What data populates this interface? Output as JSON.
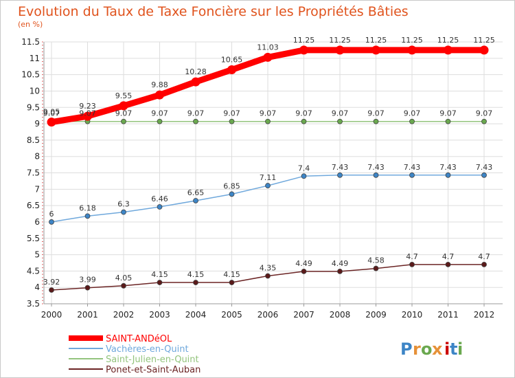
{
  "chart_data": {
    "type": "line",
    "title": "Evolution du Taux de Taxe Foncière sur les Propriétés Bâties",
    "subtitle": "(en %)",
    "x": [
      "2000",
      "2001",
      "2002",
      "2003",
      "2004",
      "2005",
      "2006",
      "2007",
      "2008",
      "2009",
      "2010",
      "2011",
      "2012"
    ],
    "ylim": [
      3.5,
      11.5
    ],
    "yticks": [
      3.5,
      4,
      4.5,
      5,
      5.5,
      6,
      6.5,
      7,
      7.5,
      8,
      8.5,
      9,
      9.5,
      10,
      10.5,
      11,
      11.5
    ],
    "ytick_labels": [
      "3.5",
      "4",
      "4.5",
      "5",
      "5.5",
      "6",
      "6.5",
      "7",
      "7.5",
      "8",
      "8.5",
      "9",
      "9.5",
      "10",
      "10.5",
      "11",
      "11.5"
    ],
    "grid": true,
    "legend": "bottom-left",
    "series": [
      {
        "name": "SAINT-ANDéOL",
        "color": "#ff0000",
        "marker": "#ff0000",
        "thick": true,
        "values": [
          9.05,
          9.23,
          9.55,
          9.88,
          10.28,
          10.65,
          11.03,
          11.25,
          11.25,
          11.25,
          11.25,
          11.25,
          11.25
        ],
        "labels": [
          "9.05",
          "9.23",
          "9.55",
          "9.88",
          "10.28",
          "10.65",
          "11.03",
          "11.25",
          "11.25",
          "11.25",
          "11.25",
          "11.25",
          "11.25"
        ]
      },
      {
        "name": "Vachères-en-Quint",
        "color": "#6fa8dc",
        "marker": "#3d85c6",
        "thick": false,
        "values": [
          6,
          6.18,
          6.3,
          6.46,
          6.65,
          6.85,
          7.11,
          7.4,
          7.43,
          7.43,
          7.43,
          7.43,
          7.43
        ],
        "labels": [
          "6",
          "6.18",
          "6.3",
          "6.46",
          "6.65",
          "6.85",
          "7.11",
          "7.4",
          "7.43",
          "7.43",
          "7.43",
          "7.43",
          "7.43"
        ]
      },
      {
        "name": "Saint-Julien-en-Quint",
        "color": "#93c47d",
        "marker": "#6aa84f",
        "thick": false,
        "values": [
          9.07,
          9.07,
          9.07,
          9.07,
          9.07,
          9.07,
          9.07,
          9.07,
          9.07,
          9.07,
          9.07,
          9.07,
          9.07
        ],
        "labels": [
          "9.07",
          "9.07",
          "9.07",
          "9.07",
          "9.07",
          "9.07",
          "9.07",
          "9.07",
          "9.07",
          "9.07",
          "9.07",
          "9.07",
          "9.07"
        ]
      },
      {
        "name": "Ponet-et-Saint-Auban",
        "color": "#6b2424",
        "marker": "#5b1a1a",
        "thick": false,
        "values": [
          3.92,
          3.99,
          4.05,
          4.15,
          4.15,
          4.15,
          4.35,
          4.49,
          4.49,
          4.58,
          4.7,
          4.7,
          4.7
        ],
        "labels": [
          "3.92",
          "3.99",
          "4.05",
          "4.15",
          "4.15",
          "4.15",
          "4.35",
          "4.49",
          "4.49",
          "4.58",
          "4.7",
          "4.7",
          "4.7"
        ]
      }
    ]
  },
  "brand": {
    "logo_text": "Proxiti",
    "letters": [
      "P",
      "r",
      "o",
      "x",
      "i",
      "t",
      "i"
    ],
    "letter_colors": [
      "#3d85c6",
      "#e69138",
      "#6aa84f",
      "#e69138",
      "#cc0000",
      "#3d85c6",
      "#6aa84f"
    ]
  }
}
